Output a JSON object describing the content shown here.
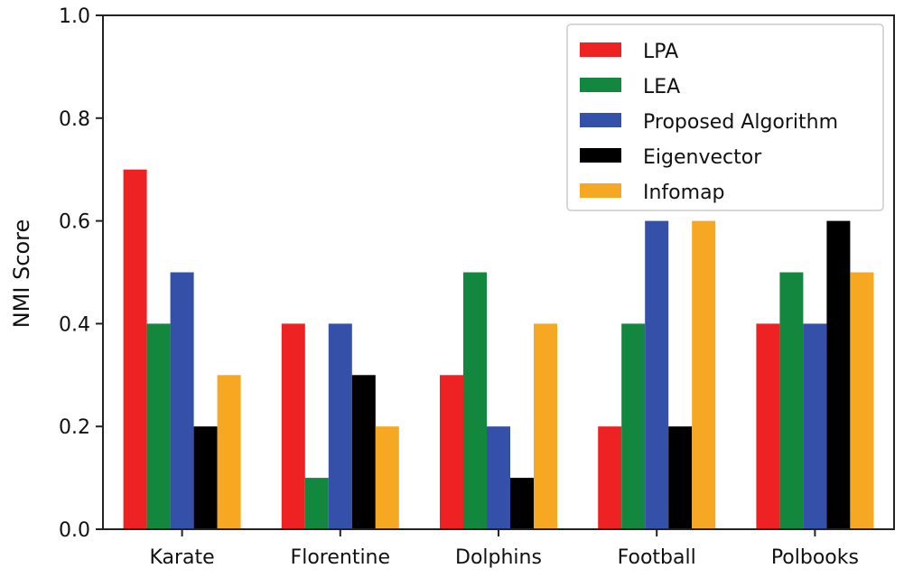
{
  "chart_data": {
    "type": "bar",
    "title": "",
    "xlabel": "",
    "ylabel": "NMI Score",
    "ylim": [
      0,
      1.0
    ],
    "yticks": [
      "0.0",
      "0.2",
      "0.4",
      "0.6",
      "0.8",
      "1.0"
    ],
    "categories": [
      "Karate",
      "Florentine",
      "Dolphins",
      "Football",
      "Polbooks"
    ],
    "legend_position": "top-right",
    "series": [
      {
        "name": "LPA",
        "color": "#ee2222",
        "values": [
          0.7,
          0.4,
          0.3,
          0.2,
          0.4
        ]
      },
      {
        "name": "LEA",
        "color": "#14873e",
        "values": [
          0.4,
          0.1,
          0.5,
          0.4,
          0.5
        ]
      },
      {
        "name": "Proposed Algorithm",
        "color": "#3550a8",
        "values": [
          0.5,
          0.4,
          0.2,
          0.6,
          0.4
        ]
      },
      {
        "name": "Eigenvector",
        "color": "#000000",
        "values": [
          0.2,
          0.3,
          0.1,
          0.2,
          0.6
        ]
      },
      {
        "name": "Infomap",
        "color": "#f7a823",
        "values": [
          0.3,
          0.2,
          0.4,
          0.6,
          0.5
        ]
      }
    ]
  }
}
